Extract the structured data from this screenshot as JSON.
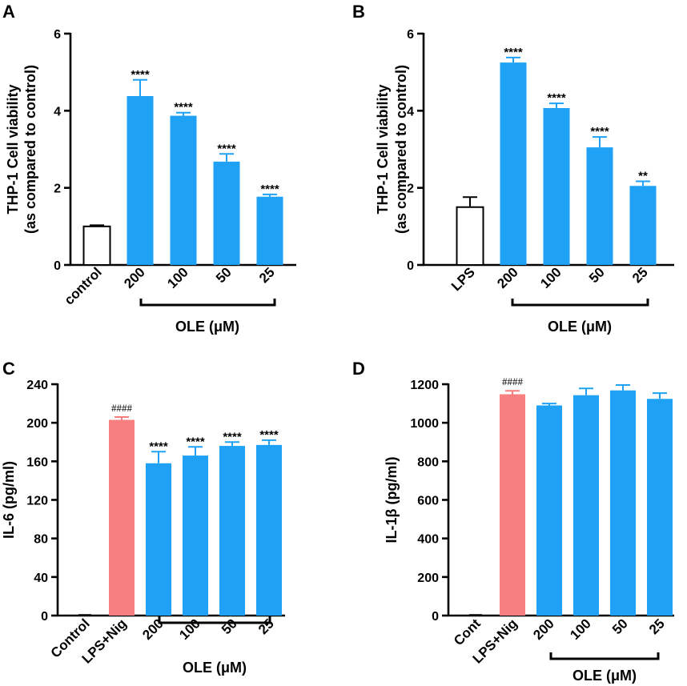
{
  "colors": {
    "blue": "#1fa2f5",
    "red": "#f77f7f",
    "white": "#ffffff",
    "black": "#000000"
  },
  "chart_data": [
    {
      "panel": "A",
      "type": "bar",
      "ylabel": [
        "THP-1 Cell viability",
        "(as compared to control)"
      ],
      "ylim": [
        0,
        6
      ],
      "yticks": [
        "0",
        "2",
        "4",
        "6"
      ],
      "categories": [
        "control",
        "200",
        "100",
        "50",
        "25"
      ],
      "values": [
        1.0,
        4.38,
        3.87,
        2.68,
        1.77
      ],
      "errors": [
        0.03,
        0.42,
        0.08,
        0.2,
        0.06
      ],
      "fills": [
        "white",
        "blue",
        "blue",
        "blue",
        "blue"
      ],
      "labels": [
        "",
        "****",
        "****",
        "****",
        "****"
      ],
      "group_label": "OLE (μM)"
    },
    {
      "panel": "B",
      "type": "bar",
      "ylabel": [
        "THP-1 Cell viability",
        "(as compared to control)"
      ],
      "ylim": [
        0,
        6
      ],
      "yticks": [
        "0",
        "2",
        "4",
        "6"
      ],
      "categories": [
        "LPS",
        "200",
        "100",
        "50",
        "25"
      ],
      "values": [
        1.5,
        5.25,
        4.07,
        3.05,
        2.05
      ],
      "errors": [
        0.26,
        0.13,
        0.12,
        0.27,
        0.12
      ],
      "fills": [
        "white",
        "blue",
        "blue",
        "blue",
        "blue"
      ],
      "labels": [
        "",
        "****",
        "****",
        "****",
        "**"
      ],
      "group_label": "OLE (μM)"
    },
    {
      "panel": "C",
      "type": "bar",
      "ylabel": [
        "IL-6 (pg/ml)"
      ],
      "ylim": [
        0,
        240
      ],
      "yticks": [
        "0",
        "40",
        "80",
        "120",
        "160",
        "200",
        "240"
      ],
      "categories": [
        "Control",
        "LPS+Nig",
        "200",
        "100",
        "50",
        "25"
      ],
      "values": [
        0,
        203,
        158,
        166,
        176,
        177
      ],
      "errors": [
        0,
        3,
        12,
        9,
        4,
        5
      ],
      "fills": [
        "white",
        "red",
        "blue",
        "blue",
        "blue",
        "blue"
      ],
      "labels": [
        "",
        "####",
        "****",
        "****",
        "****",
        "****"
      ],
      "group_label": "OLE (μM)"
    },
    {
      "panel": "D",
      "type": "bar",
      "ylabel": [
        "IL-1β (pg/ml)"
      ],
      "ylim": [
        0,
        1200
      ],
      "yticks": [
        "0",
        "200",
        "400",
        "600",
        "800",
        "1000",
        "1200"
      ],
      "categories": [
        "Cont",
        "LPS+Nig",
        "200",
        "100",
        "50",
        "25"
      ],
      "values": [
        0,
        1148,
        1090,
        1143,
        1168,
        1124
      ],
      "errors": [
        0,
        18,
        10,
        35,
        28,
        30
      ],
      "fills": [
        "white",
        "red",
        "blue",
        "blue",
        "blue",
        "blue"
      ],
      "labels": [
        "",
        "####",
        "",
        "",
        "",
        ""
      ],
      "group_label": "OLE (μM)"
    }
  ]
}
